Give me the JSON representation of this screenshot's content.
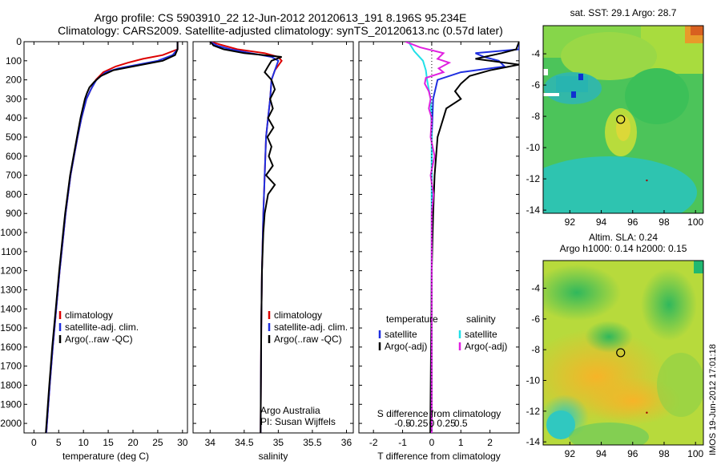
{
  "header": {
    "line1": "Argo profile: CS 5903910_22 12-Jun-2012 20120613_191 8.196S 95.234E",
    "line2": "Climatology: CARS2009. Satellite-adjusted climatology: synTS_20120613.nc (0.57d later)"
  },
  "side_stamp": "IMOS 19-Jun-2012 17:01:18",
  "colors": {
    "climatology": "#dd0000",
    "satellite": "#1f2fe0",
    "argo": "#000000",
    "salinity_sat": "#22e0e8",
    "salinity_argo": "#e020e0"
  },
  "chart_data": [
    {
      "type": "line",
      "xlabel": "temperature (deg C)",
      "ylabel": "",
      "xlim": [
        -2,
        31
      ],
      "ylim": [
        2050,
        0
      ],
      "xticks": [
        0,
        5,
        10,
        15,
        20,
        25,
        30
      ],
      "yticks": [
        0,
        100,
        200,
        300,
        400,
        500,
        600,
        700,
        800,
        900,
        1000,
        1100,
        1200,
        1300,
        1400,
        1500,
        1600,
        1700,
        1800,
        1900,
        2000
      ],
      "legend": [
        "climatology",
        "satellite-adj. clim.",
        "Argo(..raw -QC)"
      ],
      "legend_position": "lower-center",
      "series": [
        {
          "name": "climatology",
          "depth": [
            0,
            40,
            70,
            90,
            110,
            130,
            160,
            200,
            250,
            300,
            400,
            500,
            600,
            700,
            800,
            900,
            1000,
            1200,
            1400,
            1600,
            1800,
            2050
          ],
          "values": [
            29,
            29,
            26,
            22,
            19,
            16.5,
            14,
            12.5,
            11.5,
            10.6,
            9.6,
            8.8,
            8.1,
            7.4,
            6.9,
            6.4,
            6.0,
            5.2,
            4.5,
            3.8,
            3.2,
            2.5
          ]
        },
        {
          "name": "satellite-adj. clim.",
          "depth": [
            0,
            40,
            70,
            100,
            120,
            140,
            160,
            200,
            250,
            300,
            400,
            500,
            600,
            700,
            800,
            900,
            1000,
            1200,
            1400,
            1600,
            1800,
            2050
          ],
          "values": [
            29,
            29,
            28,
            25,
            21,
            17,
            14.5,
            12.6,
            11.5,
            10.6,
            9.6,
            8.8,
            8.1,
            7.4,
            6.9,
            6.4,
            6.0,
            5.2,
            4.5,
            3.8,
            3.2,
            2.5
          ]
        },
        {
          "name": "Argo(..raw -QC)",
          "depth": [
            0,
            40,
            70,
            100,
            130,
            150,
            180,
            210,
            240,
            270,
            300,
            400,
            500,
            600,
            700,
            800,
            900,
            1000,
            1200,
            1400,
            1600,
            1800,
            2050
          ],
          "values": [
            29,
            29,
            28.5,
            26,
            20,
            16,
            13.5,
            12.2,
            11.2,
            10.7,
            10.3,
            9.4,
            8.7,
            8.0,
            7.3,
            6.8,
            6.3,
            5.9,
            5.1,
            4.4,
            3.7,
            3.1,
            2.4
          ]
        }
      ]
    },
    {
      "type": "line",
      "xlabel": "salinity",
      "ylabel": "",
      "xlim": [
        33.75,
        36.1
      ],
      "ylim": [
        2050,
        0
      ],
      "xticks": [
        34,
        34.5,
        35,
        35.5,
        36
      ],
      "legend": [
        "climatology",
        "satellite-adj. clim.",
        "Argo(..raw -QC)"
      ],
      "legend_position": "lower-center",
      "annotations": [
        "Argo Australia",
        "PI: Susan Wijffels"
      ],
      "series": [
        {
          "name": "climatology",
          "depth": [
            0,
            20,
            40,
            60,
            80,
            100,
            150,
            200,
            300,
            400,
            500,
            700,
            900,
            1200,
            1500,
            2050
          ],
          "values": [
            34.0,
            34.2,
            34.4,
            34.8,
            35.0,
            35.05,
            34.95,
            34.9,
            34.88,
            34.85,
            34.82,
            34.8,
            34.78,
            34.76,
            34.75,
            34.74
          ]
        },
        {
          "name": "satellite-adj. clim.",
          "depth": [
            0,
            20,
            40,
            60,
            80,
            100,
            150,
            200,
            300,
            400,
            500,
            700,
            900,
            1200,
            1500,
            2050
          ],
          "values": [
            34.0,
            34.1,
            34.3,
            34.6,
            34.9,
            35.0,
            34.95,
            34.9,
            34.88,
            34.85,
            34.82,
            34.8,
            34.78,
            34.76,
            34.75,
            34.74
          ]
        },
        {
          "name": "Argo(..raw -QC)",
          "depth": [
            0,
            20,
            40,
            60,
            80,
            100,
            130,
            160,
            200,
            250,
            300,
            350,
            400,
            450,
            500,
            550,
            600,
            650,
            700,
            750,
            800,
            900,
            1000,
            1200,
            1500,
            2050
          ],
          "values": [
            34.0,
            34.05,
            34.2,
            34.5,
            35.05,
            34.9,
            34.85,
            34.8,
            34.9,
            34.95,
            34.88,
            34.92,
            34.85,
            34.93,
            34.84,
            34.9,
            34.86,
            34.92,
            34.82,
            34.95,
            34.85,
            34.8,
            34.78,
            34.76,
            34.75,
            34.74
          ]
        }
      ]
    },
    {
      "type": "line",
      "xlabel": "T difference from climatology",
      "xlabel_top": "S difference from climatology",
      "xlim": [
        -2.5,
        3.0
      ],
      "ylim": [
        2050,
        0
      ],
      "xticks": [
        -2,
        -1,
        0,
        1,
        2
      ],
      "xticks_top": [
        -0.5,
        -0.25,
        0,
        0.25,
        0.5
      ],
      "legend_groups": [
        {
          "title": "temperature",
          "items": [
            "satellite",
            "Argo(-adj)"
          ]
        },
        {
          "title": "salinity",
          "items": [
            "satellite",
            "Argo(-adj)"
          ]
        }
      ],
      "legend_position": "lower-center",
      "series": [
        {
          "name": "temperature satellite",
          "depth": [
            0,
            40,
            60,
            80,
            100,
            130,
            160,
            200,
            300,
            500,
            800,
            1200,
            2050
          ],
          "values": [
            3,
            3,
            1.5,
            1.8,
            2.3,
            2.5,
            1.0,
            0.2,
            0.05,
            0,
            0,
            0,
            0
          ]
        },
        {
          "name": "temperature Argo(-adj)",
          "depth": [
            0,
            40,
            60,
            90,
            120,
            150,
            180,
            220,
            260,
            300,
            350,
            400,
            500,
            700,
            900,
            1200,
            2050
          ],
          "values": [
            3,
            2.9,
            2.4,
            1.5,
            3.0,
            2.0,
            1.3,
            1.0,
            0.8,
            1.0,
            0.5,
            0.4,
            0.2,
            0.1,
            0.05,
            0,
            -0.05
          ]
        },
        {
          "name": "salinity satellite",
          "depth": [
            0,
            50,
            100,
            150,
            200,
            250,
            300,
            500,
            800,
            1200,
            2050
          ],
          "values": [
            -0.4,
            -0.3,
            -0.15,
            -0.1,
            -0.08,
            -0.05,
            -0.02,
            0,
            0,
            0,
            0
          ]
        },
        {
          "name": "salinity Argo(-adj)",
          "depth": [
            0,
            30,
            60,
            90,
            110,
            140,
            160,
            190,
            220,
            260,
            300,
            350,
            400,
            500,
            600,
            700,
            800,
            900,
            1000,
            1200,
            2050
          ],
          "values": [
            -0.45,
            -0.2,
            0.2,
            0.1,
            0.3,
            0.12,
            0.2,
            -0.1,
            -0.12,
            -0.05,
            -0.02,
            -0.05,
            0,
            -0.02,
            0.05,
            -0.02,
            0.03,
            0,
            0,
            0,
            0
          ]
        }
      ]
    },
    {
      "type": "heatmap",
      "title": "sat. SST: 29.1  Argo: 28.7",
      "xlim": [
        90.3,
        100.5
      ],
      "ylim": [
        -14.2,
        -2.2
      ],
      "xticks": [
        92,
        94,
        96,
        98,
        100
      ],
      "yticks": [
        -4,
        -6,
        -8,
        -10,
        -12,
        -14
      ],
      "marker": {
        "lon": 95.234,
        "lat": -8.196
      }
    },
    {
      "type": "heatmap",
      "title": "Altim. SLA: 0.24",
      "subtitle": "Argo h1000: 0.14  h2000: 0.15",
      "xlim": [
        90.3,
        100.5
      ],
      "ylim": [
        -14.2,
        -2.2
      ],
      "xticks": [
        92,
        94,
        96,
        98,
        100
      ],
      "yticks": [
        -4,
        -6,
        -8,
        -10,
        -12,
        -14
      ],
      "marker": {
        "lon": 95.234,
        "lat": -8.196
      }
    }
  ]
}
